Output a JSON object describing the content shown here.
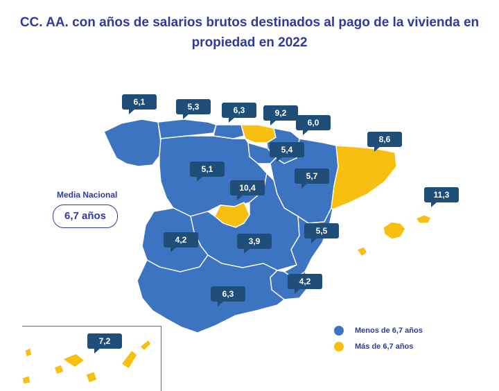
{
  "title": {
    "line1": "CC. AA. con años de salarios brutos destinados al pago de la vivienda en",
    "line2": "propiedad en 2022"
  },
  "media": {
    "label": "Media Nacional",
    "value": "6,7 años"
  },
  "colors": {
    "below": "#3d74c2",
    "above": "#f7bf10",
    "callout": "#1f4e79",
    "text": "#2e3a9e"
  },
  "legend": [
    {
      "label": "Menos de 6,7 años",
      "color": "#3d74c2"
    },
    {
      "label": "Más de 6,7 años",
      "color": "#f7bf10"
    }
  ],
  "regions": [
    {
      "id": "galicia",
      "value": "6,1",
      "above": false
    },
    {
      "id": "asturias",
      "value": "5,3",
      "above": false
    },
    {
      "id": "cantabria",
      "value": "6,3",
      "above": false
    },
    {
      "id": "pais-vasco",
      "value": "9,2",
      "above": true
    },
    {
      "id": "navarra",
      "value": "6,0",
      "above": false
    },
    {
      "id": "cataluna",
      "value": "8,6",
      "above": true
    },
    {
      "id": "la-rioja",
      "value": "5,4",
      "above": false
    },
    {
      "id": "castilla-leon",
      "value": "5,1",
      "above": false
    },
    {
      "id": "aragon",
      "value": "5,7",
      "above": false
    },
    {
      "id": "madrid",
      "value": "10,4",
      "above": true
    },
    {
      "id": "baleares",
      "value": "11,3",
      "above": true
    },
    {
      "id": "extremadura",
      "value": "4,2",
      "above": false
    },
    {
      "id": "castilla-la-mancha",
      "value": "3,9",
      "above": false
    },
    {
      "id": "comunidad-valenciana",
      "value": "5,5",
      "above": false
    },
    {
      "id": "murcia",
      "value": "4,2",
      "above": false
    },
    {
      "id": "andalucia",
      "value": "6,3",
      "above": false
    },
    {
      "id": "canarias",
      "value": "7,2",
      "above": true
    }
  ]
}
